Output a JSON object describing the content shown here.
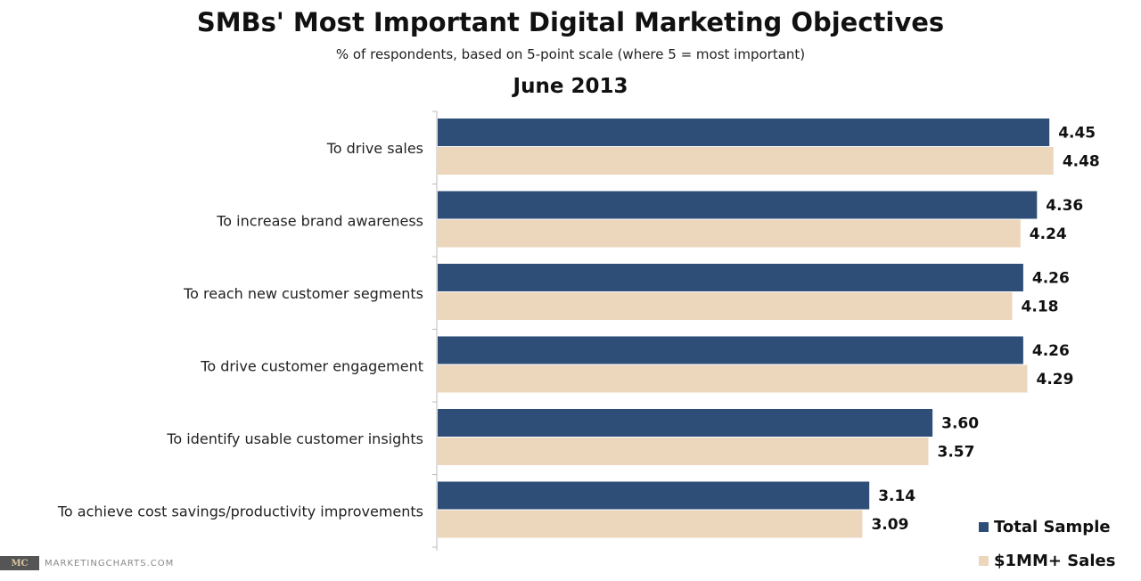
{
  "chart_data": {
    "type": "bar",
    "orientation": "horizontal",
    "title": "SMBs' Most Important Digital Marketing Objectives",
    "subtitle": "% of respondents, based on 5-point scale (where 5 = most important)",
    "period": "June 2013",
    "categories": [
      "To drive sales",
      "To increase brand awareness",
      "To reach new customer segments",
      "To drive customer engagement",
      "To identify usable customer insights",
      "To achieve cost savings/productivity improvements"
    ],
    "series": [
      {
        "name": "Total Sample",
        "color": "#2e4e78",
        "values": [
          4.45,
          4.36,
          4.26,
          4.26,
          3.6,
          3.14
        ],
        "labels": [
          "4.45",
          "4.36",
          "4.26",
          "4.26",
          "3.60",
          "3.14"
        ]
      },
      {
        "name": "$1MM+ Sales",
        "color": "#ecd7bd",
        "values": [
          4.48,
          4.24,
          4.18,
          4.29,
          3.57,
          3.09
        ],
        "labels": [
          "4.48",
          "4.24",
          "4.18",
          "4.29",
          "3.57",
          "3.09"
        ]
      }
    ],
    "xlim": [
      0,
      4.5
    ],
    "grid": false,
    "legend": "bottom-right"
  },
  "footer": {
    "logo": "MC",
    "source": "MARKETINGCHARTS.COM"
  }
}
